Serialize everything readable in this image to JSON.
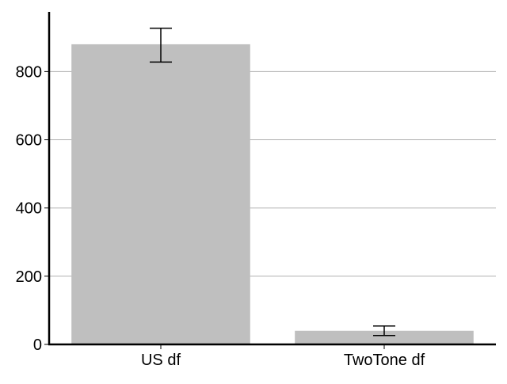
{
  "chart_data": {
    "type": "bar",
    "title": "",
    "xlabel": "",
    "ylabel": "",
    "categories": [
      "US df",
      "TwoTone df"
    ],
    "values": [
      880,
      40
    ],
    "error_bars": [
      {
        "low": 828,
        "high": 927
      },
      {
        "low": 26,
        "high": 54
      }
    ],
    "ylim": [
      0,
      975
    ],
    "yticks": [
      0,
      200,
      400,
      600,
      800
    ],
    "grid": {
      "y": true,
      "x": false
    },
    "legend": "none",
    "colors": {
      "bar": "#bfbfbf",
      "grid": "#b0b0b0",
      "axis": "#000000",
      "error_bar": "#000000"
    }
  }
}
